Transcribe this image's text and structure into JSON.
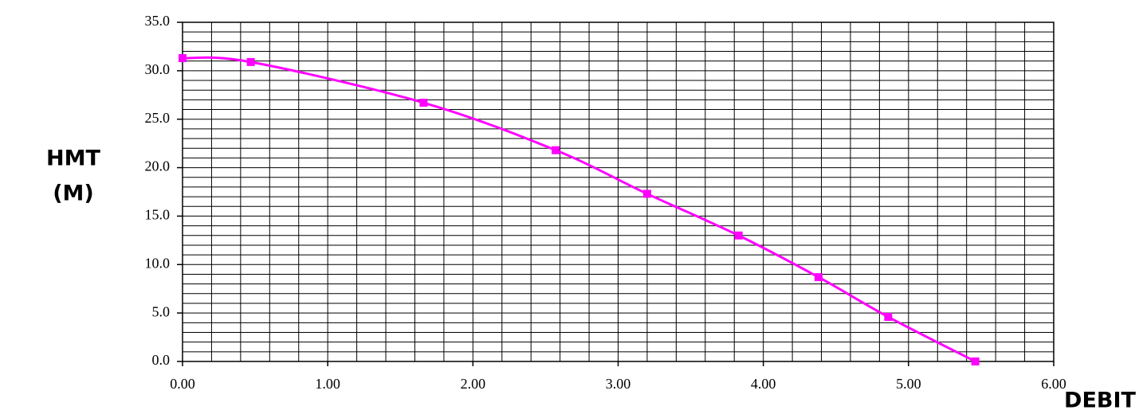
{
  "chart_data": {
    "type": "line",
    "xlabel": "DEBIT",
    "ylabel": [
      "HMT",
      "(M)"
    ],
    "x": [
      0,
      0.47,
      1.66,
      2.57,
      3.2,
      3.83,
      4.38,
      4.86,
      5.46
    ],
    "series": [
      {
        "name": "HMT",
        "color": "#ff00ff",
        "values": [
          31.3,
          30.9,
          26.7,
          21.8,
          17.3,
          13.0,
          8.7,
          4.6,
          0
        ]
      }
    ],
    "xlim": [
      0,
      6
    ],
    "ylim": [
      0,
      35
    ],
    "xticks": [
      {
        "value": 0,
        "label": "0.00"
      },
      {
        "value": 1,
        "label": "1.00"
      },
      {
        "value": 2,
        "label": "2.00"
      },
      {
        "value": 3,
        "label": "3.00"
      },
      {
        "value": 4,
        "label": "4.00"
      },
      {
        "value": 5,
        "label": "5.00"
      },
      {
        "value": 6,
        "label": "6.00"
      }
    ],
    "yticks": [
      {
        "value": 0,
        "label": "0.0"
      },
      {
        "value": 5,
        "label": "5.0"
      },
      {
        "value": 10,
        "label": "10.0"
      },
      {
        "value": 15,
        "label": "15.0"
      },
      {
        "value": 20,
        "label": "20.0"
      },
      {
        "value": 25,
        "label": "25.0"
      },
      {
        "value": 30,
        "label": "30.0"
      },
      {
        "value": 35,
        "label": "35.0"
      }
    ],
    "grid": true,
    "minor_grid": {
      "x": 0.2,
      "y": 1
    }
  }
}
